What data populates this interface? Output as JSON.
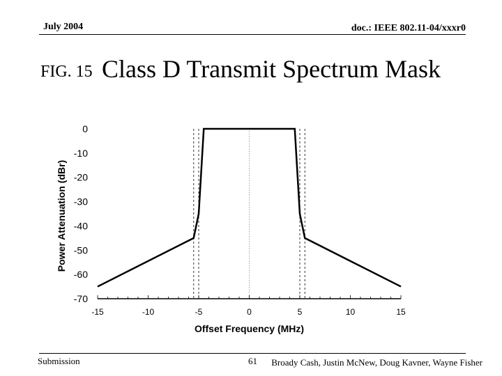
{
  "header": {
    "date": "July 2004",
    "doc_id": "doc.: IEEE 802.11-04/xxxr0"
  },
  "figure": {
    "label": "FIG. 15",
    "title": "Class D Transmit Spectrum Mask"
  },
  "footer": {
    "left": "Submission",
    "page": "61",
    "authors": "Broady Cash, Justin McNew, Doug Kavner, Wayne Fisher"
  },
  "chart_data": {
    "type": "line",
    "title": "Class D Transmit Spectrum Mask",
    "xlabel": "Offset Frequency (MHz)",
    "ylabel": "Power Attenuation (dBr)",
    "xlim": [
      -15,
      15
    ],
    "ylim": [
      -70,
      0
    ],
    "x_ticks": [
      -15,
      -10,
      -5,
      0,
      5,
      10,
      15
    ],
    "y_ticks": [
      0,
      -10,
      -20,
      -30,
      -40,
      -50,
      -60,
      -70
    ],
    "grid": false,
    "series": [
      {
        "x": [
          -15,
          -5.5,
          -5,
          -4.5,
          4.5,
          5,
          5.5,
          15
        ],
        "y": [
          -65,
          -45,
          -35,
          0,
          0,
          -35,
          -45,
          -65
        ],
        "color": "#000000"
      }
    ],
    "reference_lines_x": [
      -5.5,
      -5,
      0,
      5,
      5.5
    ]
  }
}
